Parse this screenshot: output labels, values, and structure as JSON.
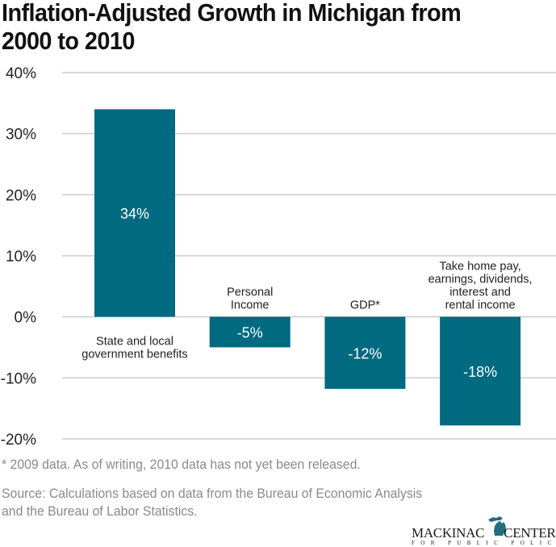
{
  "title_line1": "Inflation-Adjusted Growth in Michigan from",
  "title_line2": "2000 to 2010",
  "footnote": "* 2009 data. As of writing, 2010 data has not yet been released.",
  "source_line1": "Source: Calculations based on data from the Bureau of Economic Analysis",
  "source_line2": "and the Bureau of Labor Statistics.",
  "logo": {
    "word1": "MACKINAC",
    "word2": "CENTER",
    "tagline": "FOR PUBLIC POLICY",
    "icon": "michigan-map-icon"
  },
  "colors": {
    "bar": "#006a80",
    "grid": "#cccccc",
    "text": "#222222",
    "muted": "#8a8a8a"
  },
  "chart_data": {
    "type": "bar",
    "title": "Inflation-Adjusted Growth in Michigan from 2000 to 2010",
    "xlabel": "",
    "ylabel": "",
    "ylim": [
      -20,
      40
    ],
    "yticks": [
      40,
      30,
      20,
      10,
      0,
      -10,
      -20
    ],
    "ytick_labels": [
      "40%",
      "30%",
      "20%",
      "10%",
      "0%",
      "-10%",
      "-20%"
    ],
    "grid": true,
    "legend": "none",
    "categories": [
      [
        "State and local",
        "government benefits"
      ],
      [
        "Personal",
        "Income"
      ],
      [
        "GDP*"
      ],
      [
        "Take home pay,",
        "earnings, dividends,",
        "interest and",
        "rental income"
      ]
    ],
    "values": [
      34,
      -5,
      -11.8,
      -17.8
    ],
    "value_labels": [
      "34%",
      "-5%",
      "-12%",
      "-18%"
    ]
  }
}
